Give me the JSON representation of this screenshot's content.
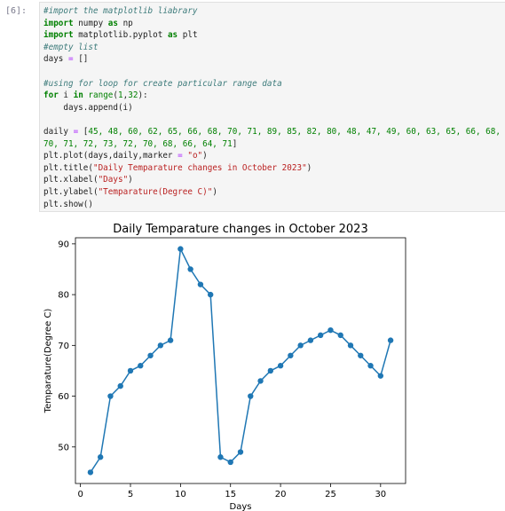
{
  "prompt": "[6]:",
  "code_lines": [
    [
      {
        "t": "#import the matplotlib liabrary",
        "c": "cm"
      }
    ],
    [
      {
        "t": "import",
        "c": "kw"
      },
      {
        "t": " numpy ",
        "c": "plain"
      },
      {
        "t": "as",
        "c": "kw"
      },
      {
        "t": " np",
        "c": "plain"
      }
    ],
    [
      {
        "t": "import",
        "c": "kw"
      },
      {
        "t": " matplotlib.pyplot ",
        "c": "plain"
      },
      {
        "t": "as",
        "c": "kw"
      },
      {
        "t": " plt",
        "c": "plain"
      }
    ],
    [
      {
        "t": "#empty list",
        "c": "cm"
      }
    ],
    [
      {
        "t": "days ",
        "c": "plain"
      },
      {
        "t": "=",
        "c": "op"
      },
      {
        "t": " []",
        "c": "plain"
      }
    ],
    [],
    [
      {
        "t": "#using for loop for create particular range data",
        "c": "cm"
      }
    ],
    [
      {
        "t": "for",
        "c": "kw"
      },
      {
        "t": " i ",
        "c": "plain"
      },
      {
        "t": "in",
        "c": "kw"
      },
      {
        "t": " ",
        "c": "plain"
      },
      {
        "t": "range",
        "c": "fn"
      },
      {
        "t": "(",
        "c": "plain"
      },
      {
        "t": "1",
        "c": "num"
      },
      {
        "t": ",",
        "c": "plain"
      },
      {
        "t": "32",
        "c": "num"
      },
      {
        "t": "):",
        "c": "plain"
      }
    ],
    [
      {
        "t": "    days",
        "c": "plain"
      },
      {
        "t": ".append(i)",
        "c": "plain"
      }
    ],
    [],
    [
      {
        "t": "daily ",
        "c": "plain"
      },
      {
        "t": "=",
        "c": "op"
      },
      {
        "t": " [",
        "c": "plain"
      },
      {
        "t": "45, 48, 60, 62, 65, 66, 68, 70, 71, 89, 85, 82, 80, 48, 47, 49, 60, 63, 65, 66, 68,",
        "c": "num"
      }
    ],
    [
      {
        "t": "70, 71, 72, 73, 72, 70, 68, 66, 64, 71",
        "c": "num"
      },
      {
        "t": "]",
        "c": "plain"
      }
    ],
    [
      {
        "t": "plt",
        "c": "plain"
      },
      {
        "t": ".plot(days,daily,marker ",
        "c": "plain"
      },
      {
        "t": "=",
        "c": "op"
      },
      {
        "t": " ",
        "c": "plain"
      },
      {
        "t": "\"o\"",
        "c": "str"
      },
      {
        "t": ")",
        "c": "plain"
      }
    ],
    [
      {
        "t": "plt",
        "c": "plain"
      },
      {
        "t": ".title(",
        "c": "plain"
      },
      {
        "t": "\"Daily Temparature changes in October 2023\"",
        "c": "str"
      },
      {
        "t": ")",
        "c": "plain"
      }
    ],
    [
      {
        "t": "plt",
        "c": "plain"
      },
      {
        "t": ".xlabel(",
        "c": "plain"
      },
      {
        "t": "\"Days\"",
        "c": "str"
      },
      {
        "t": ")",
        "c": "plain"
      }
    ],
    [
      {
        "t": "plt",
        "c": "plain"
      },
      {
        "t": ".ylabel(",
        "c": "plain"
      },
      {
        "t": "\"Temparature(Degree C)\"",
        "c": "str"
      },
      {
        "t": ")",
        "c": "plain"
      }
    ],
    [
      {
        "t": "plt",
        "c": "plain"
      },
      {
        "t": ".show()",
        "c": "plain"
      }
    ]
  ],
  "chart_data": {
    "type": "line",
    "title": "Daily Temparature changes in October 2023",
    "xlabel": "Days",
    "ylabel": "Temparature(Degree C)",
    "x": [
      1,
      2,
      3,
      4,
      5,
      6,
      7,
      8,
      9,
      10,
      11,
      12,
      13,
      14,
      15,
      16,
      17,
      18,
      19,
      20,
      21,
      22,
      23,
      24,
      25,
      26,
      27,
      28,
      29,
      30,
      31
    ],
    "series": [
      {
        "values": [
          45,
          48,
          60,
          62,
          65,
          66,
          68,
          70,
          71,
          89,
          85,
          82,
          80,
          48,
          47,
          49,
          60,
          63,
          65,
          66,
          68,
          70,
          71,
          72,
          73,
          72,
          70,
          68,
          66,
          64,
          71
        ],
        "color": "#1f77b4",
        "marker": "o"
      }
    ],
    "xticks": [
      0,
      5,
      10,
      15,
      20,
      25,
      30
    ],
    "yticks": [
      50,
      60,
      70,
      80,
      90
    ],
    "xlim": [
      -0.5,
      32.5
    ],
    "ylim": [
      42.8,
      91.2
    ],
    "grid": false
  }
}
